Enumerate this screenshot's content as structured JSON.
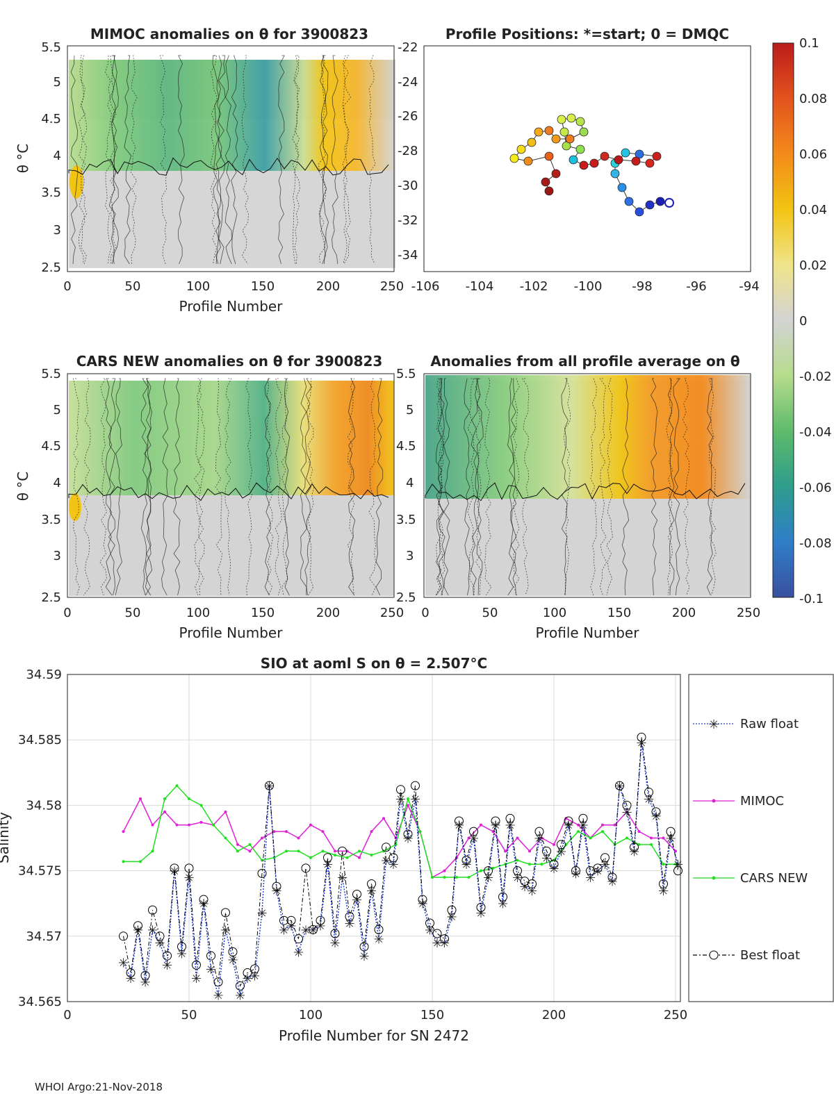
{
  "footer": "WHOI Argo:21-Nov-2018",
  "colorbar": {
    "ticks": [
      "0.1",
      "0.08",
      "0.06",
      "0.04",
      "0.02",
      "0",
      "-0.02",
      "-0.04",
      "-0.06",
      "-0.08",
      "-0.1"
    ],
    "colors": [
      "#3a4fa0",
      "#2f7ec8",
      "#2e9d8c",
      "#5dbb6b",
      "#b6dc8c",
      "#d3d3d3",
      "#efe48a",
      "#f2c413",
      "#f38a1a",
      "#e3531d",
      "#bb1c1c"
    ]
  },
  "panels": {
    "mimoc": {
      "title": "MIMOC anomalies on θ  for 3900823",
      "xlabel": "Profile Number",
      "ylabel": "θ °C",
      "xticks": [
        "0",
        "50",
        "100",
        "150",
        "200",
        "250"
      ],
      "yticks": [
        "2.5",
        "3",
        "3.5",
        "4",
        "4.5",
        "5",
        "5.5"
      ]
    },
    "positions": {
      "title": "Profile Positions: *=start; 0 = DMQC",
      "xticks": [
        "-106",
        "-104",
        "-102",
        "-100",
        "-98",
        "-96",
        "-94"
      ],
      "yticks": [
        "-22",
        "-24",
        "-26",
        "-28",
        "-30",
        "-32",
        "-34"
      ]
    },
    "cars": {
      "title": "CARS NEW anomalies on θ for 3900823",
      "xlabel": "Profile Number",
      "ylabel": "θ °C",
      "xticks": [
        "0",
        "50",
        "100",
        "150",
        "200",
        "250"
      ],
      "yticks": [
        "2.5",
        "3",
        "3.5",
        "4",
        "4.5",
        "5",
        "5.5"
      ]
    },
    "average": {
      "title": "Anomalies from all profile average on θ",
      "xlabel": "Profile Number",
      "xticks": [
        "0",
        "50",
        "100",
        "150",
        "200",
        "250"
      ],
      "yticks": [
        "2.5",
        "3",
        "3.5",
        "4",
        "4.5",
        "5",
        "5.5"
      ]
    }
  },
  "chart_data": {
    "type": "line",
    "title": "SIO at aoml S on θ = 2.507°C",
    "xlabel": "Profile Number for SN 2472",
    "ylabel": "Salinity",
    "xlim": [
      0,
      252
    ],
    "ylim": [
      34.565,
      34.59
    ],
    "xticks": [
      "0",
      "50",
      "100",
      "150",
      "200",
      "250"
    ],
    "yticks": [
      "34.565",
      "34.57",
      "34.575",
      "34.58",
      "34.585",
      "34.59"
    ],
    "legend": [
      "Raw float",
      "MIMOC",
      "CARS NEW",
      "Best float"
    ],
    "legend_position": "outside-right",
    "series": [
      {
        "name": "MIMOC",
        "color": "#e01fd8",
        "x": [
          23,
          30,
          35,
          40,
          45,
          50,
          55,
          60,
          65,
          70,
          75,
          80,
          85,
          90,
          95,
          100,
          105,
          110,
          115,
          120,
          125,
          130,
          135,
          140,
          145,
          150,
          155,
          160,
          165,
          170,
          175,
          180,
          185,
          190,
          195,
          200,
          205,
          210,
          215,
          220,
          225,
          230,
          235,
          240,
          245,
          250
        ],
        "values": [
          34.578,
          34.5805,
          34.5785,
          34.5795,
          34.5785,
          34.5785,
          34.5787,
          34.5785,
          34.5795,
          34.577,
          34.5765,
          34.5775,
          34.578,
          34.578,
          34.5775,
          34.5785,
          34.578,
          34.5765,
          34.5765,
          34.576,
          34.578,
          34.579,
          34.5775,
          34.58,
          34.578,
          34.5745,
          34.575,
          34.576,
          34.5775,
          34.5785,
          34.578,
          34.5765,
          34.5775,
          34.5765,
          34.5775,
          34.577,
          34.579,
          34.5785,
          34.5775,
          34.5785,
          34.5785,
          34.5795,
          34.578,
          34.5775,
          34.5775,
          34.5765
        ]
      },
      {
        "name": "CARS NEW",
        "color": "#1fe01f",
        "x": [
          23,
          30,
          35,
          40,
          45,
          50,
          55,
          60,
          65,
          70,
          75,
          80,
          85,
          90,
          95,
          100,
          105,
          110,
          115,
          120,
          125,
          130,
          135,
          140,
          145,
          150,
          155,
          160,
          165,
          170,
          175,
          180,
          185,
          190,
          195,
          200,
          205,
          210,
          215,
          220,
          225,
          230,
          235,
          240,
          245,
          250
        ],
        "values": [
          34.5757,
          34.5757,
          34.5765,
          34.5805,
          34.5815,
          34.5805,
          34.58,
          34.5785,
          34.5775,
          34.5765,
          34.577,
          34.5758,
          34.576,
          34.5765,
          34.5765,
          34.576,
          34.5765,
          34.5762,
          34.576,
          34.5765,
          34.5762,
          34.5765,
          34.577,
          34.5805,
          34.578,
          34.5745,
          34.5745,
          34.5745,
          34.5745,
          34.575,
          34.5752,
          34.5755,
          34.5758,
          34.5755,
          34.5755,
          34.5758,
          34.577,
          34.578,
          34.5775,
          34.578,
          34.577,
          34.5775,
          34.577,
          34.577,
          34.5755,
          34.5755
        ]
      },
      {
        "name": "Raw float",
        "color": "#1f3fdc",
        "x": [
          23,
          26,
          29,
          32,
          35,
          38,
          41,
          44,
          47,
          50,
          53,
          56,
          59,
          62,
          65,
          68,
          71,
          74,
          77,
          80,
          83,
          86,
          89,
          92,
          95,
          98,
          101,
          104,
          107,
          110,
          113,
          116,
          119,
          122,
          125,
          128,
          131,
          134,
          137,
          140,
          143,
          146,
          149,
          152,
          155,
          158,
          161,
          164,
          167,
          170,
          173,
          176,
          179,
          182,
          185,
          188,
          191,
          194,
          197,
          200,
          203,
          206,
          209,
          212,
          215,
          218,
          221,
          224,
          227,
          230,
          233,
          236,
          239,
          242,
          245,
          248,
          251
        ],
        "values": [
          34.568,
          34.5668,
          34.5705,
          34.5665,
          34.5705,
          34.5695,
          34.5678,
          34.575,
          34.5687,
          34.5745,
          34.5668,
          34.5725,
          34.5675,
          34.5655,
          34.5705,
          34.5682,
          34.5655,
          34.5668,
          34.567,
          34.5718,
          34.5815,
          34.5735,
          34.5705,
          34.5708,
          34.5688,
          34.5705,
          34.5705,
          34.5708,
          34.5755,
          34.5695,
          34.5745,
          34.571,
          34.5728,
          34.5685,
          34.5735,
          34.5698,
          34.5758,
          34.5755,
          34.5805,
          34.5775,
          34.5805,
          34.5725,
          34.5705,
          34.5695,
          34.5695,
          34.5715,
          34.5785,
          34.5755,
          34.5775,
          34.5718,
          34.5745,
          34.5785,
          34.5725,
          34.5785,
          34.5745,
          34.5738,
          34.5735,
          34.5775,
          34.576,
          34.5752,
          34.5765,
          34.5785,
          34.5748,
          34.5785,
          34.5745,
          34.575,
          34.5755,
          34.5742,
          34.5815,
          34.5795,
          34.5765,
          34.5848,
          34.5805,
          34.5792,
          34.5735,
          34.5775,
          34.5755
        ]
      },
      {
        "name": "Best float",
        "color": "#000000",
        "x": [
          23,
          26,
          29,
          32,
          35,
          38,
          41,
          44,
          47,
          50,
          53,
          56,
          59,
          62,
          65,
          68,
          71,
          74,
          77,
          80,
          83,
          86,
          89,
          92,
          95,
          98,
          101,
          104,
          107,
          110,
          113,
          116,
          119,
          122,
          125,
          128,
          131,
          134,
          137,
          140,
          143,
          146,
          149,
          152,
          155,
          158,
          161,
          164,
          167,
          170,
          173,
          176,
          179,
          182,
          185,
          188,
          191,
          194,
          197,
          200,
          203,
          206,
          209,
          212,
          215,
          218,
          221,
          224,
          227,
          230,
          233,
          236,
          239,
          242,
          245,
          248,
          251
        ],
        "values": [
          34.57,
          34.5672,
          34.5708,
          34.567,
          34.572,
          34.57,
          34.5685,
          34.5752,
          34.5692,
          34.5752,
          34.5678,
          34.5728,
          34.5685,
          34.5665,
          34.5718,
          34.5688,
          34.5662,
          34.5672,
          34.5675,
          34.5748,
          34.5815,
          34.5738,
          34.5712,
          34.5712,
          34.5698,
          34.5752,
          34.5705,
          34.5712,
          34.576,
          34.5702,
          34.5765,
          34.5715,
          34.5732,
          34.5692,
          34.574,
          34.5705,
          34.5768,
          34.576,
          34.5812,
          34.5778,
          34.5815,
          34.5728,
          34.571,
          34.5702,
          34.5698,
          34.572,
          34.5788,
          34.5758,
          34.578,
          34.5722,
          34.575,
          34.5788,
          34.573,
          34.579,
          34.575,
          34.5742,
          34.574,
          34.578,
          34.5765,
          34.5755,
          34.577,
          34.5788,
          34.575,
          34.579,
          34.575,
          34.5752,
          34.576,
          34.5745,
          34.5815,
          34.58,
          34.5768,
          34.5852,
          34.581,
          34.5795,
          34.574,
          34.578,
          34.575
        ]
      }
    ]
  }
}
